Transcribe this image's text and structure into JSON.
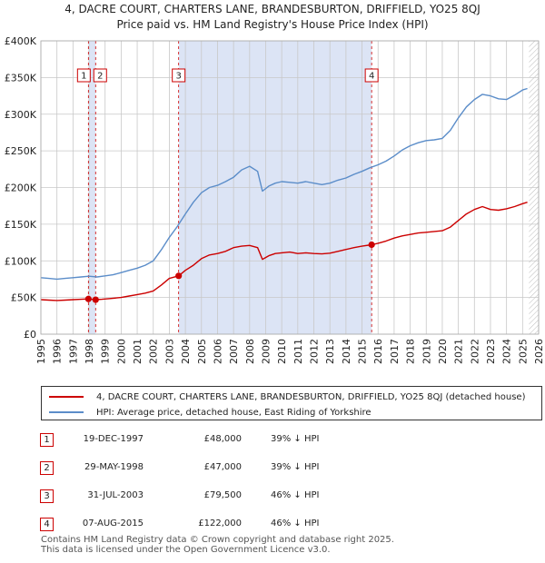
{
  "title_line1": "4, DACRE COURT, CHARTERS LANE, BRANDESBURTON, DRIFFIELD, YO25 8QJ",
  "title_line2": "Price paid vs. HM Land Registry's House Price Index (HPI)",
  "legend": {
    "property": "4, DACRE COURT, CHARTERS LANE, BRANDESBURTON, DRIFFIELD, YO25 8QJ (detached house)",
    "hpi": "HPI: Average price, detached house, East Riding of Yorkshire"
  },
  "sales": [
    {
      "num": "1",
      "date": "19-DEC-1997",
      "price": "£48,000",
      "hpi": "39% ↓ HPI"
    },
    {
      "num": "2",
      "date": "29-MAY-1998",
      "price": "£47,000",
      "hpi": "39% ↓ HPI"
    },
    {
      "num": "3",
      "date": "31-JUL-2003",
      "price": "£79,500",
      "hpi": "46% ↓ HPI"
    },
    {
      "num": "4",
      "date": "07-AUG-2015",
      "price": "£122,000",
      "hpi": "46% ↓ HPI"
    }
  ],
  "footer": {
    "line1": "Contains HM Land Registry data © Crown copyright and database right 2025.",
    "line2": "This data is licensed under the Open Government Licence v3.0."
  },
  "colors": {
    "property_line": "#cc0000",
    "hpi_line": "#5b8dc9",
    "shade": "#dce4f5",
    "grid": "#c8c8c8",
    "marker_box": "#cc0000"
  },
  "chart_data": {
    "type": "line",
    "xlim": [
      1995,
      2026
    ],
    "ylim": [
      0,
      400000
    ],
    "x_ticks": [
      "1995",
      "1996",
      "1997",
      "1998",
      "1999",
      "2000",
      "2001",
      "2002",
      "2003",
      "2004",
      "2005",
      "2006",
      "2007",
      "2008",
      "2009",
      "2010",
      "2011",
      "2012",
      "2013",
      "2014",
      "2015",
      "2016",
      "2017",
      "2018",
      "2019",
      "2020",
      "2021",
      "2022",
      "2023",
      "2024",
      "2025",
      "2026"
    ],
    "y_ticks": [
      {
        "value": 0,
        "label": "£0"
      },
      {
        "value": 50000,
        "label": "£50K"
      },
      {
        "value": 100000,
        "label": "£100K"
      },
      {
        "value": 150000,
        "label": "£150K"
      },
      {
        "value": 200000,
        "label": "£200K"
      },
      {
        "value": 250000,
        "label": "£250K"
      },
      {
        "value": 300000,
        "label": "£300K"
      },
      {
        "value": 350000,
        "label": "£350K"
      },
      {
        "value": 400000,
        "label": "£400K"
      }
    ],
    "shaded_ranges": [
      [
        1997.96,
        1998.41
      ],
      [
        2003.58,
        2015.6
      ]
    ],
    "series": [
      {
        "name": "4, DACRE COURT, CHARTERS LANE, BRANDESBURTON, DRIFFIELD, YO25 8QJ (detached house)",
        "x": [
          1995,
          1995.5,
          1996,
          1996.5,
          1997,
          1997.5,
          1997.96,
          1998.41,
          1998.8,
          1999.3,
          2000,
          2000.5,
          2001,
          2001.5,
          2002,
          2002.5,
          2003,
          2003.58,
          2004,
          2004.5,
          2005,
          2005.5,
          2006,
          2006.5,
          2007,
          2007.5,
          2008,
          2008.5,
          2008.8,
          2009.2,
          2009.6,
          2010,
          2010.5,
          2011,
          2011.5,
          2012,
          2012.5,
          2013,
          2013.5,
          2014,
          2014.5,
          2015,
          2015.6,
          2016,
          2016.5,
          2017,
          2017.5,
          2018,
          2018.5,
          2019,
          2019.5,
          2020,
          2020.5,
          2021,
          2021.5,
          2022,
          2022.5,
          2023,
          2023.5,
          2024,
          2024.5,
          2025,
          2025.3
        ],
        "y": [
          47000,
          46500,
          46000,
          46500,
          47000,
          47500,
          48000,
          47000,
          47500,
          48500,
          50000,
          52000,
          54000,
          56000,
          59000,
          67000,
          76000,
          79500,
          87000,
          94000,
          103000,
          108000,
          110000,
          113000,
          118000,
          120000,
          121000,
          118000,
          102000,
          107000,
          110000,
          111000,
          112000,
          110000,
          111000,
          110000,
          109500,
          110500,
          113000,
          115500,
          118000,
          120000,
          122000,
          124000,
          127000,
          131000,
          134000,
          136000,
          138000,
          139000,
          140000,
          141000,
          146000,
          155000,
          164000,
          170000,
          174000,
          170000,
          169000,
          171000,
          174000,
          178000,
          180000
        ]
      },
      {
        "name": "HPI: Average price, detached house, East Riding of Yorkshire",
        "x": [
          1995,
          1995.5,
          1996,
          1996.5,
          1997,
          1997.5,
          1998,
          1998.5,
          1999,
          1999.5,
          2000,
          2000.5,
          2001,
          2001.5,
          2002,
          2002.5,
          2003,
          2003.5,
          2004,
          2004.5,
          2005,
          2005.5,
          2006,
          2006.5,
          2007,
          2007.5,
          2008,
          2008.5,
          2008.8,
          2009.2,
          2009.6,
          2010,
          2010.5,
          2011,
          2011.5,
          2012,
          2012.5,
          2013,
          2013.5,
          2014,
          2014.5,
          2015,
          2015.5,
          2016,
          2016.5,
          2017,
          2017.5,
          2018,
          2018.5,
          2019,
          2019.5,
          2020,
          2020.5,
          2021,
          2021.5,
          2022,
          2022.5,
          2023,
          2023.5,
          2024,
          2024.5,
          2025,
          2025.3
        ],
        "y": [
          77000,
          76000,
          75000,
          76000,
          77000,
          78000,
          79000,
          78000,
          79500,
          81000,
          84000,
          87000,
          90000,
          94000,
          100000,
          115000,
          132000,
          147000,
          164000,
          180000,
          193000,
          200000,
          203000,
          208000,
          214000,
          224000,
          229000,
          222000,
          195000,
          202000,
          206000,
          208000,
          207000,
          206000,
          208000,
          206000,
          204000,
          206000,
          210000,
          213000,
          218000,
          222000,
          227000,
          231000,
          236000,
          243000,
          251000,
          257000,
          261000,
          264000,
          265000,
          267000,
          278000,
          295000,
          310000,
          320000,
          327000,
          325000,
          321000,
          320000,
          326000,
          333000,
          335000
        ]
      }
    ],
    "markers": [
      {
        "label": "1",
        "x": 1997.96,
        "y": 48000
      },
      {
        "label": "2",
        "x": 1998.41,
        "y": 47000
      },
      {
        "label": "3",
        "x": 2003.58,
        "y": 79500
      },
      {
        "label": "4",
        "x": 2015.6,
        "y": 122000
      }
    ]
  }
}
